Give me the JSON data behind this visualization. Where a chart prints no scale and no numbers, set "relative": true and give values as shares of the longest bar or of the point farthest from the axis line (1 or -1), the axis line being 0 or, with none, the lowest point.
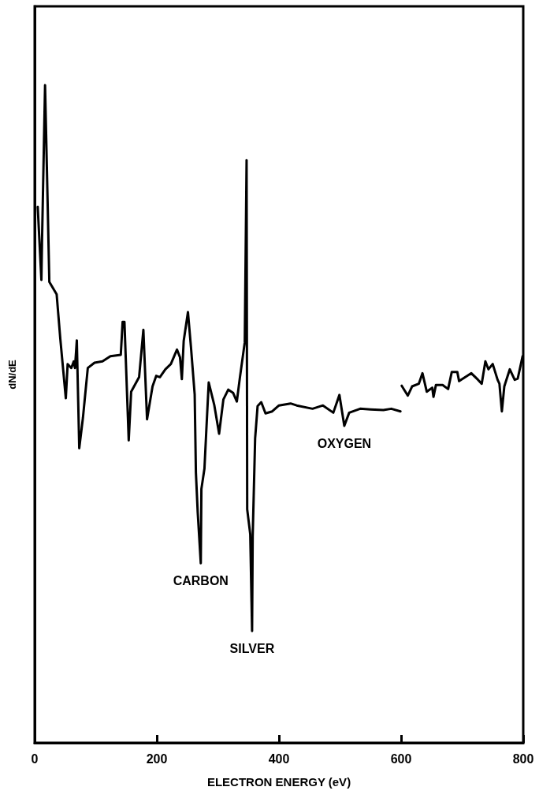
{
  "chart_data": {
    "type": "line",
    "relative": true,
    "xlabel": "ELECTRON ENERGY (eV)",
    "ylabel": "dN/dE",
    "xlim": [
      0,
      800
    ],
    "xticks": [
      0,
      200,
      400,
      600,
      800
    ],
    "grid": false,
    "marker": "none",
    "line_style": "solid",
    "annotations": [
      {
        "text": "CARBON",
        "x": 272,
        "y": 0.273
      },
      {
        "text": "SILVER",
        "x": 356,
        "y": 0.17
      },
      {
        "text": "OXYGEN",
        "x": 507,
        "y": 0.482
      }
    ],
    "series": [
      {
        "color": "#000000",
        "x": [
          5,
          11,
          12,
          17,
          20,
          24,
          36,
          42,
          51,
          54,
          60,
          64,
          66,
          69,
          73,
          79,
          87,
          98,
          111,
          124,
          141,
          144,
          147,
          154,
          158,
          171,
          178,
          184,
          193,
          199,
          205,
          214,
          223,
          233,
          238,
          241,
          244,
          251,
          256,
          262,
          264,
          267,
          272,
          273,
          278,
          281,
          285,
          294,
          302,
          309,
          317,
          325,
          331,
          336,
          344,
          347,
          348,
          353,
          356,
          357,
          361,
          365,
          371,
          378,
          389,
          400,
          419,
          429,
          455,
          472,
          489,
          499,
          507,
          515,
          533,
          550,
          571,
          584,
          599
        ],
        "values": [
          0.815,
          0.704,
          0.76,
          1,
          0.874,
          0.701,
          0.682,
          0.614,
          0.524,
          0.576,
          0.57,
          0.58,
          0.57,
          0.612,
          0.448,
          0.494,
          0.57,
          0.578,
          0.58,
          0.588,
          0.59,
          0.64,
          0.64,
          0.46,
          0.534,
          0.556,
          0.628,
          0.492,
          0.542,
          0.558,
          0.556,
          0.568,
          0.576,
          0.598,
          0.586,
          0.553,
          0.611,
          0.655,
          0.601,
          0.53,
          0.411,
          0.35,
          0.273,
          0.386,
          0.417,
          0.474,
          0.548,
          0.514,
          0.47,
          0.522,
          0.537,
          0.532,
          0.519,
          0.555,
          0.609,
          0.886,
          0.355,
          0.317,
          0.17,
          0.314,
          0.463,
          0.512,
          0.518,
          0.501,
          0.504,
          0.513,
          0.516,
          0.513,
          0.508,
          0.513,
          0.502,
          0.529,
          0.482,
          0.502,
          0.508,
          0.507,
          0.506,
          0.508,
          0.504
        ]
      },
      {
        "color": "#000000",
        "x": [
          601,
          611,
          618,
          629,
          635,
          642,
          651,
          653,
          657,
          668,
          677,
          683,
          692,
          695,
          705,
          715,
          726,
          732,
          738,
          743,
          750,
          758,
          761,
          765,
          769,
          778,
          786,
          791,
          799
        ],
        "values": [
          0.543,
          0.528,
          0.542,
          0.546,
          0.562,
          0.534,
          0.54,
          0.526,
          0.544,
          0.544,
          0.538,
          0.564,
          0.564,
          0.55,
          0.556,
          0.562,
          0.552,
          0.546,
          0.58,
          0.568,
          0.576,
          0.552,
          0.546,
          0.504,
          0.542,
          0.568,
          0.552,
          0.554,
          0.588
        ]
      }
    ]
  }
}
